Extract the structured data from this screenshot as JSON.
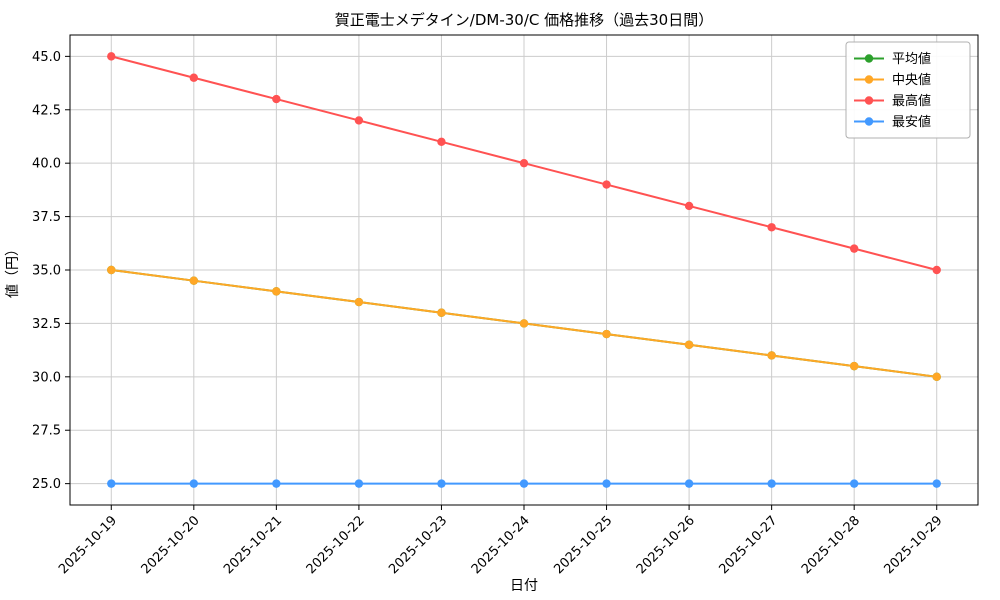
{
  "chart_data": {
    "type": "line",
    "title": "賀正電士メデタイン/DM-30/C 価格推移（過去30日間）",
    "xlabel": "日付",
    "ylabel": "値（円）",
    "x": [
      "2025-10-19",
      "2025-10-20",
      "2025-10-21",
      "2025-10-22",
      "2025-10-23",
      "2025-10-24",
      "2025-10-25",
      "2025-10-26",
      "2025-10-27",
      "2025-10-28",
      "2025-10-29"
    ],
    "series": [
      {
        "name": "平均値",
        "color": "#2ca02c",
        "values": [
          35,
          34.5,
          34,
          33.5,
          33,
          32.5,
          32,
          31.5,
          31,
          30.5,
          30
        ]
      },
      {
        "name": "中央値",
        "color": "#ffa726",
        "values": [
          35,
          34.5,
          34,
          33.5,
          33,
          32.5,
          32,
          31.5,
          31,
          30.5,
          30
        ]
      },
      {
        "name": "最高値",
        "color": "#ff5252",
        "values": [
          45,
          44,
          43,
          42,
          41,
          40,
          39,
          38,
          37,
          36,
          35
        ]
      },
      {
        "name": "最安値",
        "color": "#4299ff",
        "values": [
          25,
          25,
          25,
          25,
          25,
          25,
          25,
          25,
          25,
          25,
          25
        ]
      }
    ],
    "ylim": [
      24,
      46
    ],
    "yticks": [
      25,
      27.5,
      30,
      32.5,
      35,
      37.5,
      40,
      42.5,
      45
    ],
    "grid": true,
    "legend_position": "upper-right"
  },
  "style": {
    "grid_color": "#cccccc",
    "axis_color": "#000000",
    "background": "#ffffff",
    "legend_border": "#b0b0b0"
  }
}
